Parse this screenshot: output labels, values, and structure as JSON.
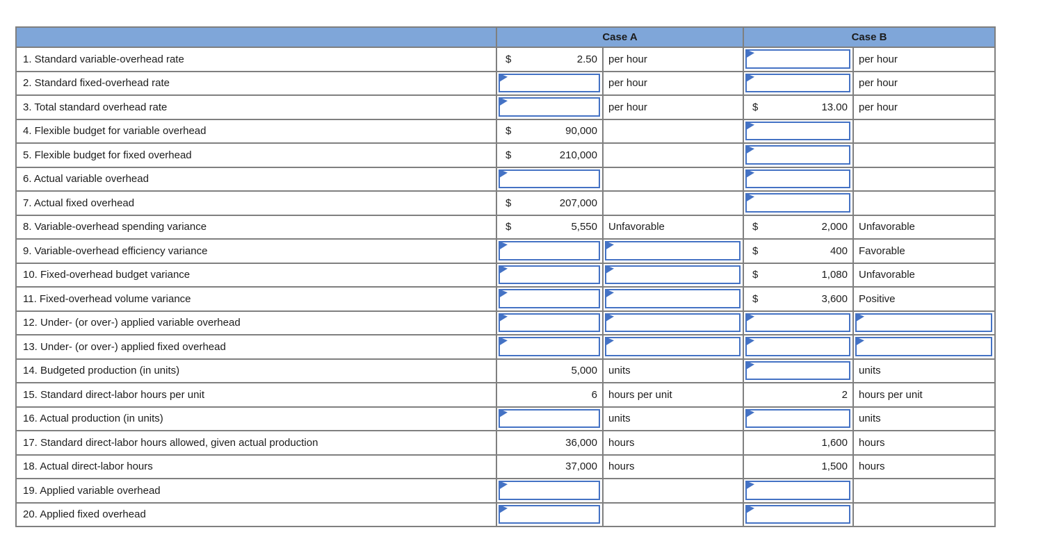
{
  "colors": {
    "header_bg": "#7FA6D9",
    "input_border": "#4472C4",
    "grid_line": "#7F7F7F",
    "text": "#1C1C1C"
  },
  "table": {
    "case_a_header": "Case A",
    "case_b_header": "Case B",
    "rows": [
      {
        "label": "1. Standard variable-overhead rate",
        "a": {
          "dollar": "$",
          "value": "2.50",
          "unit": "per hour",
          "value_input": false,
          "unit_input": false
        },
        "b": {
          "dollar": "",
          "value": "",
          "unit": "per hour",
          "value_input": true,
          "unit_input": false
        }
      },
      {
        "label": "2. Standard fixed-overhead rate",
        "a": {
          "dollar": "",
          "value": "",
          "unit": "per hour",
          "value_input": true,
          "unit_input": false
        },
        "b": {
          "dollar": "",
          "value": "",
          "unit": "per hour",
          "value_input": true,
          "unit_input": false
        }
      },
      {
        "label": "3. Total standard overhead rate",
        "a": {
          "dollar": "",
          "value": "",
          "unit": "per hour",
          "value_input": true,
          "unit_input": false
        },
        "b": {
          "dollar": "$",
          "value": "13.00",
          "unit": "per hour",
          "value_input": false,
          "unit_input": false
        }
      },
      {
        "label": "4. Flexible budget for variable overhead",
        "a": {
          "dollar": "$",
          "value": "90,000",
          "unit": "",
          "value_input": false,
          "unit_input": false
        },
        "b": {
          "dollar": "",
          "value": "",
          "unit": "",
          "value_input": true,
          "unit_input": false
        }
      },
      {
        "label": "5. Flexible budget for fixed overhead",
        "a": {
          "dollar": "$",
          "value": "210,000",
          "unit": "",
          "value_input": false,
          "unit_input": false
        },
        "b": {
          "dollar": "",
          "value": "",
          "unit": "",
          "value_input": true,
          "unit_input": false
        }
      },
      {
        "label": "6. Actual variable overhead",
        "a": {
          "dollar": "",
          "value": "",
          "unit": "",
          "value_input": true,
          "unit_input": false
        },
        "b": {
          "dollar": "",
          "value": "",
          "unit": "",
          "value_input": true,
          "unit_input": false
        }
      },
      {
        "label": "7. Actual fixed overhead",
        "a": {
          "dollar": "$",
          "value": "207,000",
          "unit": "",
          "value_input": false,
          "unit_input": false
        },
        "b": {
          "dollar": "",
          "value": "",
          "unit": "",
          "value_input": true,
          "unit_input": false
        }
      },
      {
        "label": "8. Variable-overhead spending variance",
        "a": {
          "dollar": "$",
          "value": "5,550",
          "unit": "Unfavorable",
          "value_input": false,
          "unit_input": false
        },
        "b": {
          "dollar": "$",
          "value": "2,000",
          "unit": "Unfavorable",
          "value_input": false,
          "unit_input": false
        }
      },
      {
        "label": "9. Variable-overhead efficiency variance",
        "a": {
          "dollar": "",
          "value": "",
          "unit": "",
          "value_input": true,
          "unit_input": true
        },
        "b": {
          "dollar": "$",
          "value": "400",
          "unit": "Favorable",
          "value_input": false,
          "unit_input": false
        }
      },
      {
        "label": "10. Fixed-overhead budget variance",
        "a": {
          "dollar": "",
          "value": "",
          "unit": "",
          "value_input": true,
          "unit_input": true
        },
        "b": {
          "dollar": "$",
          "value": "1,080",
          "unit": "Unfavorable",
          "value_input": false,
          "unit_input": false
        }
      },
      {
        "label": "11. Fixed-overhead volume variance",
        "a": {
          "dollar": "",
          "value": "",
          "unit": "",
          "value_input": true,
          "unit_input": true
        },
        "b": {
          "dollar": "$",
          "value": "3,600",
          "unit": "Positive",
          "value_input": false,
          "unit_input": false
        }
      },
      {
        "label": "12. Under- (or over-) applied variable overhead",
        "a": {
          "dollar": "",
          "value": "",
          "unit": "",
          "value_input": true,
          "unit_input": true
        },
        "b": {
          "dollar": "",
          "value": "",
          "unit": "",
          "value_input": true,
          "unit_input": true
        }
      },
      {
        "label": "13. Under- (or over-) applied fixed overhead",
        "a": {
          "dollar": "",
          "value": "",
          "unit": "",
          "value_input": true,
          "unit_input": true
        },
        "b": {
          "dollar": "",
          "value": "",
          "unit": "",
          "value_input": true,
          "unit_input": true
        }
      },
      {
        "label": "14. Budgeted production (in units)",
        "a": {
          "dollar": "",
          "value": "5,000",
          "unit": "units",
          "value_input": false,
          "unit_input": false
        },
        "b": {
          "dollar": "",
          "value": "",
          "unit": "units",
          "value_input": true,
          "unit_input": false
        }
      },
      {
        "label": "15. Standard direct-labor hours per unit",
        "a": {
          "dollar": "",
          "value": "6",
          "unit": "hours per unit",
          "value_input": false,
          "unit_input": false
        },
        "b": {
          "dollar": "",
          "value": "2",
          "unit": "hours per unit",
          "value_input": false,
          "unit_input": false
        }
      },
      {
        "label": "16. Actual production (in units)",
        "a": {
          "dollar": "",
          "value": "",
          "unit": "units",
          "value_input": true,
          "unit_input": false
        },
        "b": {
          "dollar": "",
          "value": "",
          "unit": "units",
          "value_input": true,
          "unit_input": false
        }
      },
      {
        "label": "17. Standard direct-labor hours allowed, given actual production",
        "a": {
          "dollar": "",
          "value": "36,000",
          "unit": "hours",
          "value_input": false,
          "unit_input": false
        },
        "b": {
          "dollar": "",
          "value": "1,600",
          "unit": "hours",
          "value_input": false,
          "unit_input": false
        }
      },
      {
        "label": "18. Actual direct-labor hours",
        "a": {
          "dollar": "",
          "value": "37,000",
          "unit": "hours",
          "value_input": false,
          "unit_input": false
        },
        "b": {
          "dollar": "",
          "value": "1,500",
          "unit": "hours",
          "value_input": false,
          "unit_input": false
        }
      },
      {
        "label": "19. Applied variable overhead",
        "a": {
          "dollar": "",
          "value": "",
          "unit": "",
          "value_input": true,
          "unit_input": false
        },
        "b": {
          "dollar": "",
          "value": "",
          "unit": "",
          "value_input": true,
          "unit_input": false
        }
      },
      {
        "label": "20. Applied fixed overhead",
        "a": {
          "dollar": "",
          "value": "",
          "unit": "",
          "value_input": true,
          "unit_input": false
        },
        "b": {
          "dollar": "",
          "value": "",
          "unit": "",
          "value_input": true,
          "unit_input": false
        }
      }
    ]
  }
}
